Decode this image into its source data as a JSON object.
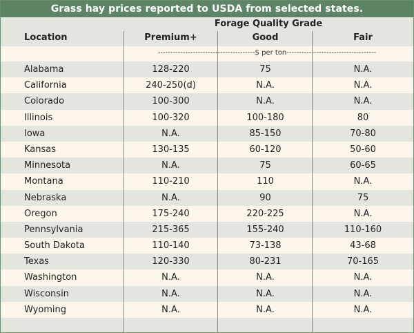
{
  "title": "Grass hay prices reported to USDA from selected states.",
  "header": {
    "grade_label": "Forage Quality Grade",
    "location": "Location",
    "premium": "Premium+",
    "good": "Good",
    "fair": "Fair",
    "unit": "---------------------------------------$ per ton------------------------------------"
  },
  "rows": [
    {
      "location": "Alabama",
      "premium": "128-220",
      "good": "75",
      "fair": "N.A."
    },
    {
      "location": "California",
      "premium": "240-250(d)",
      "good": "N.A.",
      "fair": "N.A."
    },
    {
      "location": "Colorado",
      "premium": "100-300",
      "good": "N.A.",
      "fair": "N.A."
    },
    {
      "location": "Illinois",
      "premium": "100-320",
      "good": "100-180",
      "fair": "80"
    },
    {
      "location": "Iowa",
      "premium": "N.A.",
      "good": "85-150",
      "fair": "70-80"
    },
    {
      "location": "Kansas",
      "premium": "130-135",
      "good": "60-120",
      "fair": "50-60"
    },
    {
      "location": "Minnesota",
      "premium": "N.A.",
      "good": "75",
      "fair": "60-65"
    },
    {
      "location": "Montana",
      "premium": "110-210",
      "good": "110",
      "fair": "N.A."
    },
    {
      "location": "Nebraska",
      "premium": "N.A.",
      "good": "90",
      "fair": "75"
    },
    {
      "location": "Oregon",
      "premium": "175-240",
      "good": "220-225",
      "fair": "N.A."
    },
    {
      "location": "Pennsylvania",
      "premium": "215-365",
      "good": "155-240",
      "fair": "110-160"
    },
    {
      "location": "South Dakota",
      "premium": "110-140",
      "good": "73-138",
      "fair": "43-68"
    },
    {
      "location": "Texas",
      "premium": "120-330",
      "good": "80-231",
      "fair": "70-165"
    },
    {
      "location": "Washington",
      "premium": "N.A.",
      "good": "N.A.",
      "fair": "N.A."
    },
    {
      "location": "Wisconsin",
      "premium": "N.A.",
      "good": "N.A.",
      "fair": "N.A."
    },
    {
      "location": "Wyoming",
      "premium": "N.A.",
      "good": "N.A.",
      "fair": "N.A."
    }
  ]
}
